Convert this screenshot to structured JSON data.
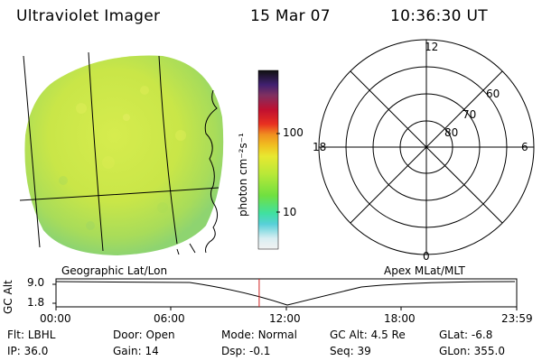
{
  "header": {
    "title": "Ultraviolet Imager",
    "date": "15 Mar 07",
    "time": "10:36:30 UT"
  },
  "colorbar": {
    "unit_label": "photon cm⁻²s⁻¹",
    "ticks": [
      "100",
      "10"
    ]
  },
  "polar_plot": {
    "mlt_labels": {
      "top": "12",
      "left": "18",
      "right": "6",
      "bottom": "0"
    },
    "lat_labels": [
      "60",
      "70",
      "80"
    ]
  },
  "timeline": {
    "left_title": "Geographic Lat/Lon",
    "right_title": "Apex MLat/MLT",
    "y_axis_label": "GC Alt",
    "y_ticks": [
      "9.0",
      "1.8"
    ],
    "x_ticks": [
      "00:00",
      "06:00",
      "12:00",
      "18:00",
      "23:59"
    ],
    "current_time_fraction": 0.441
  },
  "stats": [
    {
      "label": "Flt:",
      "value": "LBHL"
    },
    {
      "label": "Door:",
      "value": "Open"
    },
    {
      "label": "Mode:",
      "value": "Normal"
    },
    {
      "label": "GC Alt:",
      "value": "4.5 Re"
    },
    {
      "label": "GLat:",
      "value": "-6.8"
    },
    {
      "label": "IP:",
      "value": "36.0"
    },
    {
      "label": "Gain:",
      "value": "14"
    },
    {
      "label": "Dsp:",
      "value": "-0.1"
    },
    {
      "label": "Seq:",
      "value": "39"
    },
    {
      "label": "GLon:",
      "value": "355.0"
    }
  ],
  "colors": {
    "disk_base": "#c8e646",
    "marker": "#d02020"
  }
}
